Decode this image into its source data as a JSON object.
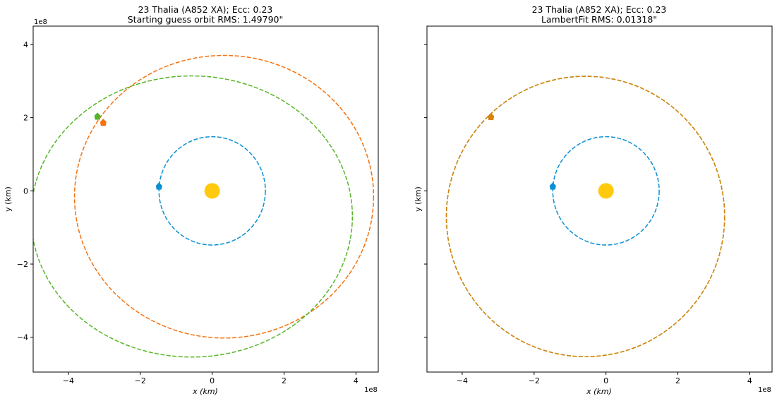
{
  "chart_data": [
    {
      "type": "scatter",
      "title": "23 Thalia (A852 XA); Ecc: 0.23",
      "subtitle": "Starting guess orbit RMS: 1.49790\"",
      "xlabel": "x (km)",
      "ylabel": "y (km)",
      "xlim": [
        -4.98,
        4.62
      ],
      "ylim": [
        -4.95,
        4.5
      ],
      "scale_label": "1e8",
      "xticks": [
        "−4",
        "−2",
        "0",
        "2",
        "4"
      ],
      "yticks": [
        "4",
        "2",
        "0",
        "−2",
        "−4"
      ],
      "grid": false,
      "sun": {
        "x": 0,
        "y": 0,
        "color": "#ffc90e"
      },
      "orbits": [
        {
          "color": "#0c8fd4",
          "center": [
            0,
            0
          ],
          "a": 1.48,
          "b": 1.48,
          "marker": [
            -1.48,
            0.12
          ]
        },
        {
          "color": "#f5720f",
          "center": [
            0.33,
            -0.16
          ],
          "a": 4.16,
          "b": 3.86,
          "marker": [
            -3.03,
            1.86
          ]
        },
        {
          "color": "#56b428",
          "center": [
            -0.57,
            -0.7
          ],
          "a": 4.47,
          "b": 3.84,
          "marker": [
            -3.19,
            2.03
          ]
        }
      ]
    },
    {
      "type": "scatter",
      "title": "23 Thalia (A852 XA); Ecc: 0.23",
      "subtitle": "LambertFit RMS: 0.01318\"",
      "xlabel": "x (km)",
      "ylabel": "y (km)",
      "xlim": [
        -4.98,
        4.62
      ],
      "ylim": [
        -4.95,
        4.5
      ],
      "scale_label": "1e8",
      "xticks": [
        "−4",
        "−2",
        "0",
        "2",
        "4"
      ],
      "yticks": [
        "4",
        "2",
        "0",
        "−2",
        "−4"
      ],
      "grid": false,
      "sun": {
        "x": 0,
        "y": 0,
        "color": "#ffc90e"
      },
      "orbits": [
        {
          "color": "#0c8fd4",
          "center": [
            0,
            0
          ],
          "a": 1.48,
          "b": 1.48,
          "marker": [
            -1.48,
            0.12
          ]
        },
        {
          "color": "#56b428",
          "center": [
            -0.57,
            -0.7
          ],
          "a": 3.87,
          "b": 3.83,
          "marker": null
        },
        {
          "color": "#d9820f",
          "center": [
            -0.57,
            -0.7
          ],
          "a": 3.87,
          "b": 3.83,
          "marker": [
            -3.2,
            2.02
          ]
        }
      ]
    }
  ]
}
